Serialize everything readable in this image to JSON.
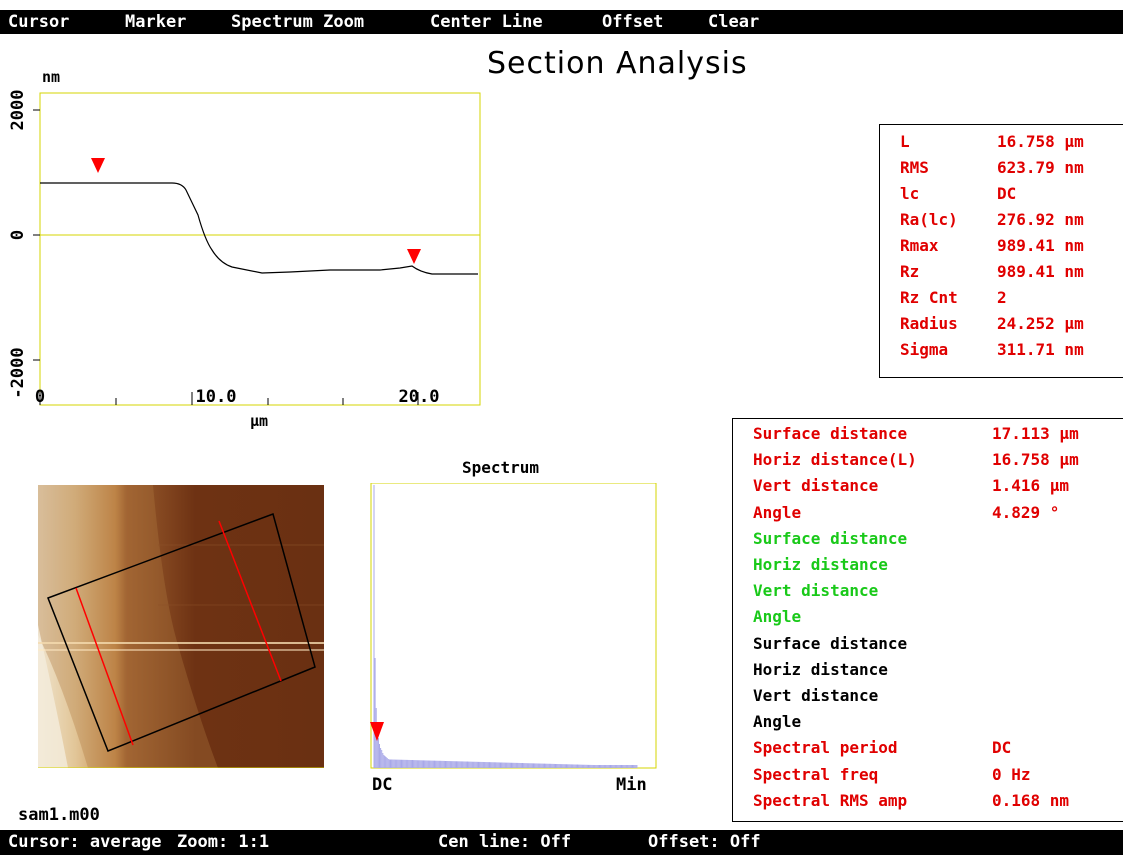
{
  "menu": [
    "Cursor",
    "Marker",
    "Spectrum Zoom",
    "Center Line",
    "Offset",
    "Clear"
  ],
  "title": "Section Analysis",
  "profile": {
    "y_unit": "nm",
    "x_unit": "µm",
    "y_ticks": [
      "2000",
      "0",
      "-2000"
    ],
    "x_ticks": [
      "0",
      "10.0",
      "20.0"
    ]
  },
  "stats": [
    {
      "label": "L",
      "value": "16.758 µm"
    },
    {
      "label": "RMS",
      "value": "623.79 nm"
    },
    {
      "label": "lc",
      "value": "DC"
    },
    {
      "label": "Ra(lc)",
      "value": "276.92 nm"
    },
    {
      "label": "Rmax",
      "value": "989.41 nm"
    },
    {
      "label": "Rz",
      "value": "989.41 nm"
    },
    {
      "label": "Rz Cnt",
      "value": "2"
    },
    {
      "label": "Radius",
      "value": "24.252 µm"
    },
    {
      "label": "Sigma",
      "value": "311.71 nm"
    }
  ],
  "spectrum": {
    "title": "Spectrum",
    "x_start": "DC",
    "x_end": "Min"
  },
  "filename": "sam1.m00",
  "measurements": [
    {
      "label": "Surface distance",
      "value": "17.113 µm",
      "color": "#e00000"
    },
    {
      "label": "Horiz distance(L)",
      "value": "16.758 µm",
      "color": "#e00000"
    },
    {
      "label": "Vert distance",
      "value": "1.416 µm",
      "color": "#e00000"
    },
    {
      "label": "Angle",
      "value": "4.829 °",
      "color": "#e00000"
    },
    {
      "label": "Surface distance",
      "value": "",
      "color": "#19c919"
    },
    {
      "label": "Horiz distance",
      "value": "",
      "color": "#19c919"
    },
    {
      "label": "Vert distance",
      "value": "",
      "color": "#19c919"
    },
    {
      "label": "Angle",
      "value": "",
      "color": "#19c919"
    },
    {
      "label": "Surface distance",
      "value": "",
      "color": "#000000"
    },
    {
      "label": "Horiz distance",
      "value": "",
      "color": "#000000"
    },
    {
      "label": "Vert distance",
      "value": "",
      "color": "#000000"
    },
    {
      "label": "Angle",
      "value": "",
      "color": "#000000"
    },
    {
      "label": "Spectral period",
      "value": "DC",
      "color": "#e00000"
    },
    {
      "label": "Spectral freq",
      "value": "0 Hz",
      "color": "#e00000"
    },
    {
      "label": "Spectral RMS amp",
      "value": "0.168 nm",
      "color": "#e00000"
    }
  ],
  "status": {
    "cursor": "Cursor: average",
    "zoom": "Zoom: 1:1",
    "cen_line": "Cen line: Off",
    "offset": "Offset: Off"
  }
}
